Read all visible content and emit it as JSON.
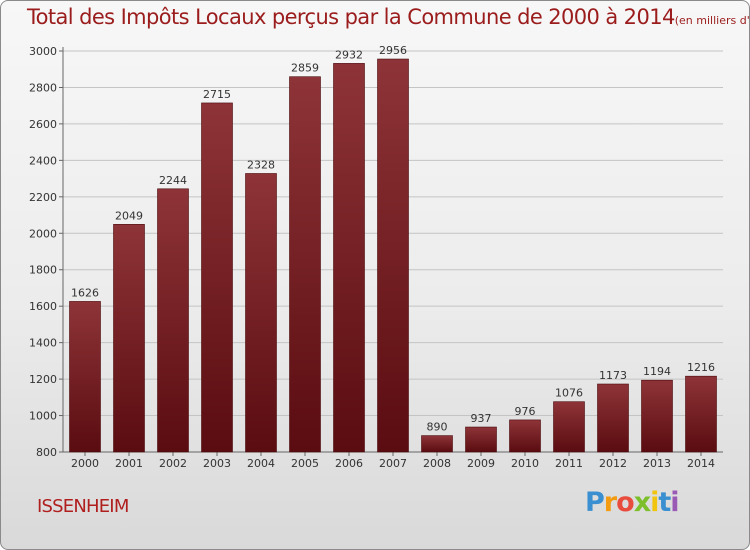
{
  "title": {
    "main": "Total des Impôts Locaux perçus par la Commune de 2000 à 2014",
    "unit": "(en milliers d'€)"
  },
  "commune": "ISSENHEIM",
  "logo": {
    "letters": [
      "P",
      "r",
      "o",
      "x",
      "i",
      "t",
      "i"
    ]
  },
  "colors": {
    "bar_top": "#8e3438",
    "bar_bottom": "#5a0c10",
    "title": "#9b1c1c"
  },
  "chart_data": {
    "type": "bar",
    "title": "Total des Impôts Locaux perçus par la Commune de 2000 à 2014",
    "xlabel": "",
    "ylabel": "",
    "categories": [
      "2000",
      "2001",
      "2002",
      "2003",
      "2004",
      "2005",
      "2006",
      "2007",
      "2008",
      "2009",
      "2010",
      "2011",
      "2012",
      "2013",
      "2014"
    ],
    "values": [
      1626,
      2049,
      2244,
      2715,
      2328,
      2859,
      2932,
      2956,
      890,
      937,
      976,
      1076,
      1173,
      1194,
      1216
    ],
    "ylim": [
      800,
      3000
    ],
    "yticks": [
      800,
      1000,
      1200,
      1400,
      1600,
      1800,
      2000,
      2200,
      2400,
      2600,
      2800,
      3000
    ],
    "grid": true
  }
}
